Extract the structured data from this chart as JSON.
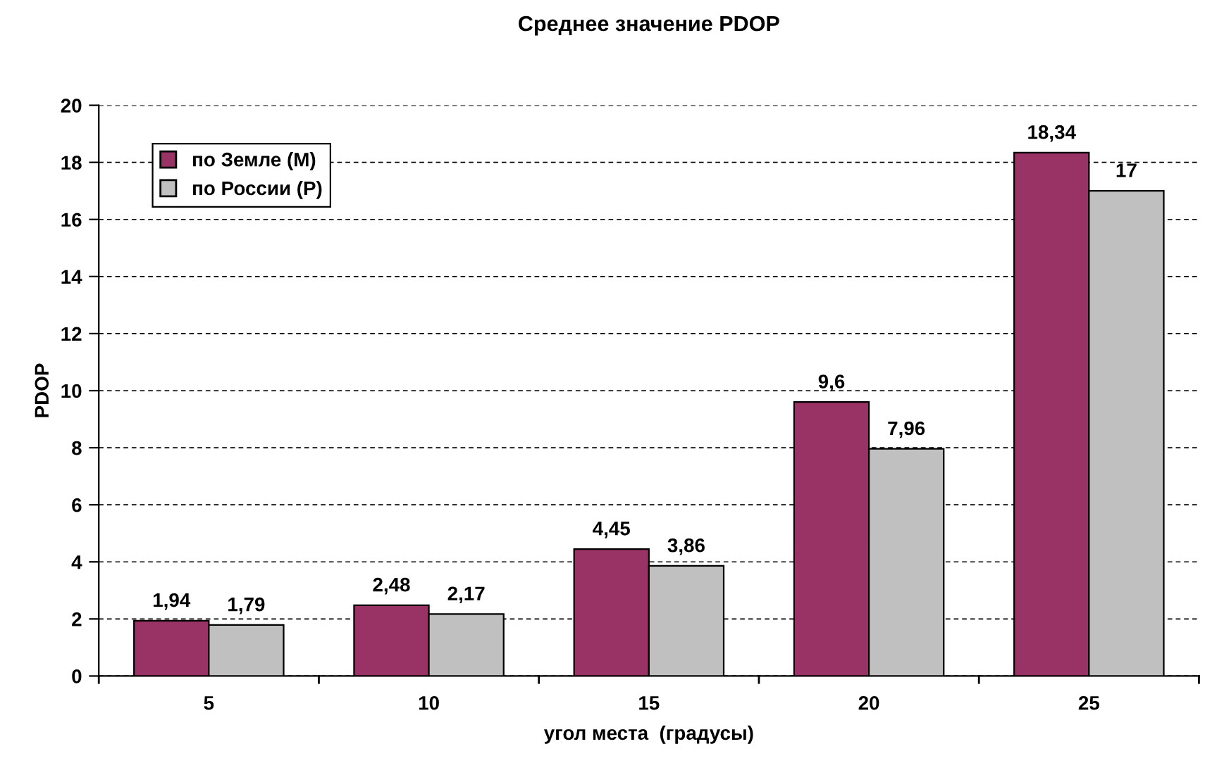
{
  "chart_data": {
    "type": "bar",
    "title": "Среднее значение PDOP",
    "xlabel": "угол места  (градусы)",
    "ylabel": "PDOP",
    "categories": [
      "5",
      "10",
      "15",
      "20",
      "25"
    ],
    "series": [
      {
        "name": "по Земле (М)",
        "color": "#993366",
        "values": [
          1.94,
          2.48,
          4.45,
          9.6,
          18.34
        ],
        "value_labels": [
          "1,94",
          "2,48",
          "4,45",
          "9,6",
          "18,34"
        ]
      },
      {
        "name": "по России (Р)",
        "color": "#c0c0c0",
        "values": [
          1.79,
          2.17,
          3.86,
          7.96,
          17
        ],
        "value_labels": [
          "1,79",
          "2,17",
          "3,86",
          "7,96",
          "17"
        ]
      }
    ],
    "ylim": [
      0,
      20
    ],
    "yticks": [
      0,
      2,
      4,
      6,
      8,
      10,
      12,
      14,
      16,
      18,
      20
    ],
    "grid": "y",
    "legend": "top left"
  }
}
